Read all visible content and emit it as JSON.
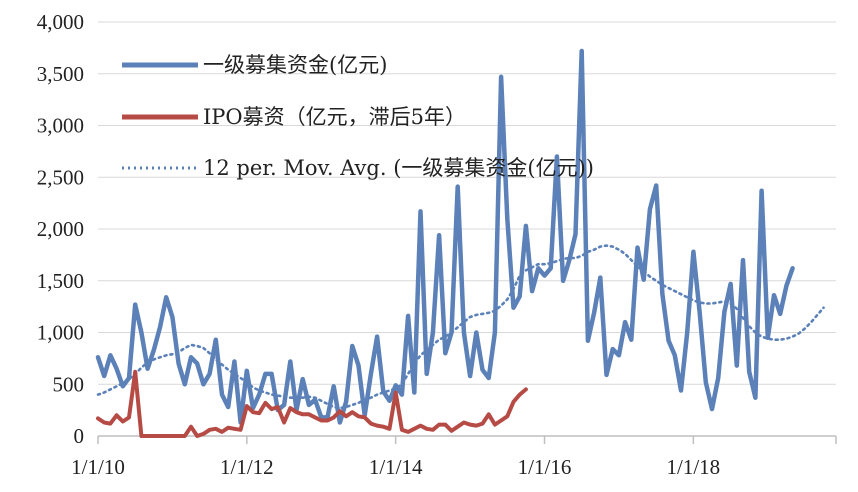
{
  "colors": {
    "fundraise": "#5b81b8",
    "ipo": "#b64b45",
    "moving_avg": "#5b81b8",
    "grid": "#d9d9d9"
  },
  "legend": [
    {
      "key": "fundraise",
      "label": "一级募集资金(亿元)",
      "style": "solid"
    },
    {
      "key": "ipo",
      "label": "IPO募资（亿元，滞后5年）",
      "style": "solid"
    },
    {
      "key": "moving_avg",
      "label": "12 per. Mov. Avg. (一级募集资金(亿元))",
      "style": "dotted"
    }
  ],
  "chart_data": {
    "type": "line",
    "title": "",
    "xlabel": "",
    "ylabel": "",
    "x_ticks": [
      "1/1/10",
      "1/1/12",
      "1/1/14",
      "1/1/16",
      "1/1/18"
    ],
    "y_ticks": [
      "0",
      "500",
      "1,000",
      "1,500",
      "2,000",
      "2,500",
      "3,000",
      "3,500",
      "4,000"
    ],
    "ylim": [
      0,
      4000
    ],
    "xlim": [
      "2010-01",
      "2019-12"
    ],
    "grid": "horizontal",
    "legend_position": "top-left",
    "series": [
      {
        "name": "一级募集资金(亿元)",
        "start": "2010-01",
        "frequency": "monthly",
        "values": [
          760,
          580,
          780,
          650,
          480,
          560,
          1270,
          1000,
          650,
          830,
          1050,
          1340,
          1150,
          700,
          500,
          760,
          700,
          500,
          600,
          930,
          400,
          280,
          720,
          130,
          630,
          270,
          400,
          600,
          600,
          250,
          300,
          720,
          250,
          550,
          300,
          350,
          180,
          180,
          480,
          130,
          330,
          870,
          680,
          200,
          600,
          960,
          430,
          340,
          490,
          400,
          1160,
          420,
          2170,
          600,
          1000,
          1940,
          800,
          1000,
          2410,
          1000,
          580,
          1000,
          640,
          560,
          1000,
          3470,
          2100,
          1240,
          1350,
          2030,
          1400,
          1620,
          1550,
          1620,
          2700,
          1500,
          1700,
          1950,
          3720,
          920,
          1190,
          1530,
          590,
          840,
          780,
          1100,
          930,
          1820,
          1510,
          2190,
          2420,
          1370,
          920,
          780,
          440,
          1000,
          1780,
          1200,
          520,
          260,
          560,
          1200,
          1470,
          680,
          1700,
          620,
          370,
          2370,
          950,
          1360,
          1180,
          1450,
          1620
        ]
      },
      {
        "name": "IPO募资（亿元，滞后5年）",
        "start": "2010-01",
        "frequency": "monthly",
        "values": [
          170,
          130,
          120,
          200,
          140,
          180,
          620,
          0,
          0,
          0,
          0,
          0,
          0,
          0,
          0,
          90,
          0,
          20,
          60,
          70,
          40,
          80,
          70,
          60,
          290,
          230,
          220,
          320,
          260,
          280,
          130,
          270,
          230,
          210,
          210,
          180,
          150,
          150,
          180,
          240,
          190,
          230,
          190,
          180,
          120,
          100,
          90,
          70,
          420,
          60,
          40,
          70,
          100,
          70,
          60,
          110,
          110,
          50,
          90,
          130,
          110,
          100,
          120,
          210,
          110,
          150,
          190,
          330,
          400,
          450
        ]
      },
      {
        "name": "12 per. Mov. Avg. (一级募集资金(亿元))",
        "start": "2010-01",
        "frequency": "monthly",
        "values": [
          400,
          420,
          450,
          480,
          510,
          550,
          600,
          660,
          710,
          740,
          760,
          780,
          790,
          810,
          850,
          880,
          870,
          850,
          800,
          740,
          690,
          640,
          600,
          560,
          520,
          470,
          440,
          420,
          400,
          390,
          380,
          370,
          370,
          370,
          380,
          370,
          340,
          310,
          280,
          270,
          280,
          300,
          320,
          350,
          370,
          400,
          420,
          440,
          460,
          500,
          600,
          700,
          780,
          830,
          880,
          930,
          960,
          1000,
          1050,
          1100,
          1150,
          1170,
          1180,
          1190,
          1210,
          1260,
          1320,
          1420,
          1550,
          1600,
          1630,
          1660,
          1660,
          1670,
          1690,
          1710,
          1720,
          1720,
          1740,
          1780,
          1800,
          1830,
          1840,
          1830,
          1800,
          1760,
          1700,
          1640,
          1590,
          1540,
          1500,
          1460,
          1430,
          1400,
          1370,
          1340,
          1310,
          1290,
          1280,
          1280,
          1290,
          1300,
          1280,
          1230,
          1140,
          1060,
          1000,
          960,
          940,
          930,
          930,
          940,
          960,
          990,
          1040,
          1100,
          1170,
          1240
        ]
      }
    ]
  }
}
